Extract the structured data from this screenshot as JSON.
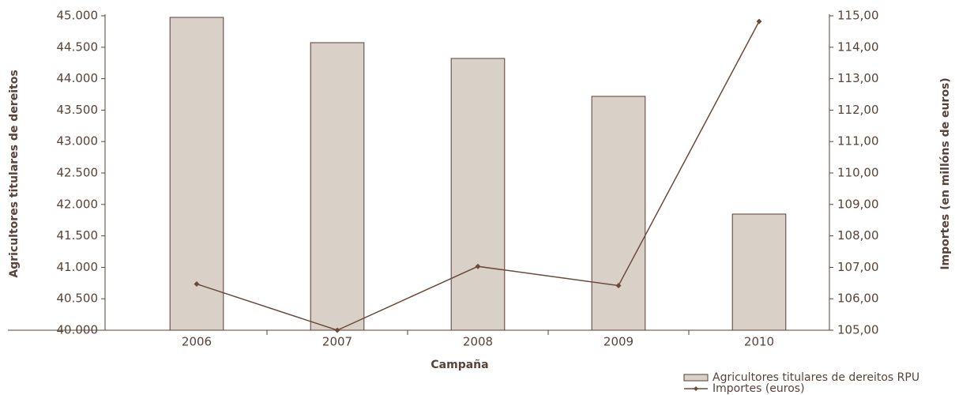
{
  "chart_data": {
    "type": "bar",
    "categories": [
      "2006",
      "2007",
      "2008",
      "2009",
      "2010"
    ],
    "x_label": "Campaña",
    "y_label": "Agricultores titulares de dereitos",
    "y2_label": "Importes (en millóns de euros)",
    "series": [
      {
        "name": "Agricultores titulares de dereitos RPU",
        "type": "bar",
        "color": "#d9d0c7",
        "values": [
          44975,
          44573,
          44322,
          43719,
          41847
        ]
      },
      {
        "name": "Importes (euros)",
        "type": "line",
        "axis": "y2",
        "color": "#6b4a3c",
        "values": [
          106.47,
          105.0,
          107.03,
          106.42,
          114.82
        ]
      }
    ],
    "ylim": [
      40000,
      45000
    ],
    "yticks": [
      {
        "value": 40000,
        "label": "40.000"
      },
      {
        "value": 40500,
        "label": "40.500"
      },
      {
        "value": 41000,
        "label": "41.000"
      },
      {
        "value": 41500,
        "label": "41.500"
      },
      {
        "value": 42000,
        "label": "42.000"
      },
      {
        "value": 42500,
        "label": "42.500"
      },
      {
        "value": 43000,
        "label": "43.000"
      },
      {
        "value": 43500,
        "label": "43.500"
      },
      {
        "value": 44000,
        "label": "44.000"
      },
      {
        "value": 44500,
        "label": "44.500"
      },
      {
        "value": 45000,
        "label": "45.000"
      }
    ],
    "y2lim": [
      105,
      115
    ],
    "y2ticks": [
      {
        "value": 105,
        "label": "105,00"
      },
      {
        "value": 106,
        "label": "106,00"
      },
      {
        "value": 107,
        "label": "107,00"
      },
      {
        "value": 108,
        "label": "108,00"
      },
      {
        "value": 109,
        "label": "109,00"
      },
      {
        "value": 110,
        "label": "110,00"
      },
      {
        "value": 111,
        "label": "111,00"
      },
      {
        "value": 112,
        "label": "112,00"
      },
      {
        "value": 113,
        "label": "113,00"
      },
      {
        "value": 114,
        "label": "114,00"
      },
      {
        "value": 115,
        "label": "115,00"
      }
    ],
    "grid": false
  }
}
